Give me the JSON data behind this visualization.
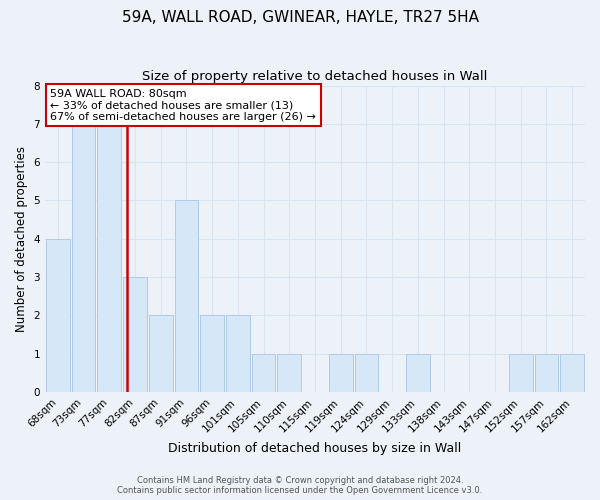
{
  "title": "59A, WALL ROAD, GWINEAR, HAYLE, TR27 5HA",
  "subtitle": "Size of property relative to detached houses in Wall",
  "xlabel": "Distribution of detached houses by size in Wall",
  "ylabel": "Number of detached properties",
  "bin_labels": [
    "68sqm",
    "73sqm",
    "77sqm",
    "82sqm",
    "87sqm",
    "91sqm",
    "96sqm",
    "101sqm",
    "105sqm",
    "110sqm",
    "115sqm",
    "119sqm",
    "124sqm",
    "129sqm",
    "133sqm",
    "138sqm",
    "143sqm",
    "147sqm",
    "152sqm",
    "157sqm",
    "162sqm"
  ],
  "bar_heights": [
    4,
    7,
    7,
    3,
    2,
    5,
    2,
    2,
    1,
    1,
    0,
    1,
    1,
    0,
    1,
    0,
    0,
    0,
    1,
    1,
    1
  ],
  "bar_color": "#d6e8f7",
  "bar_edgecolor": "#b0cce8",
  "vline_x": 2.68,
  "vline_color": "#cc0000",
  "ylim": [
    0,
    8
  ],
  "yticks": [
    0,
    1,
    2,
    3,
    4,
    5,
    6,
    7,
    8
  ],
  "annotation_title": "59A WALL ROAD: 80sqm",
  "annotation_line1": "← 33% of detached houses are smaller (13)",
  "annotation_line2": "67% of semi-detached houses are larger (26) →",
  "annotation_box_facecolor": "#ffffff",
  "annotation_box_edgecolor": "#cc0000",
  "footer_line1": "Contains HM Land Registry data © Crown copyright and database right 2024.",
  "footer_line2": "Contains public sector information licensed under the Open Government Licence v3.0.",
  "background_color": "#edf2f9",
  "grid_color": "#d8e4f0",
  "title_fontsize": 11,
  "subtitle_fontsize": 9.5,
  "xlabel_fontsize": 9,
  "ylabel_fontsize": 8.5,
  "tick_fontsize": 7.5,
  "footer_fontsize": 6,
  "annotation_fontsize": 8
}
